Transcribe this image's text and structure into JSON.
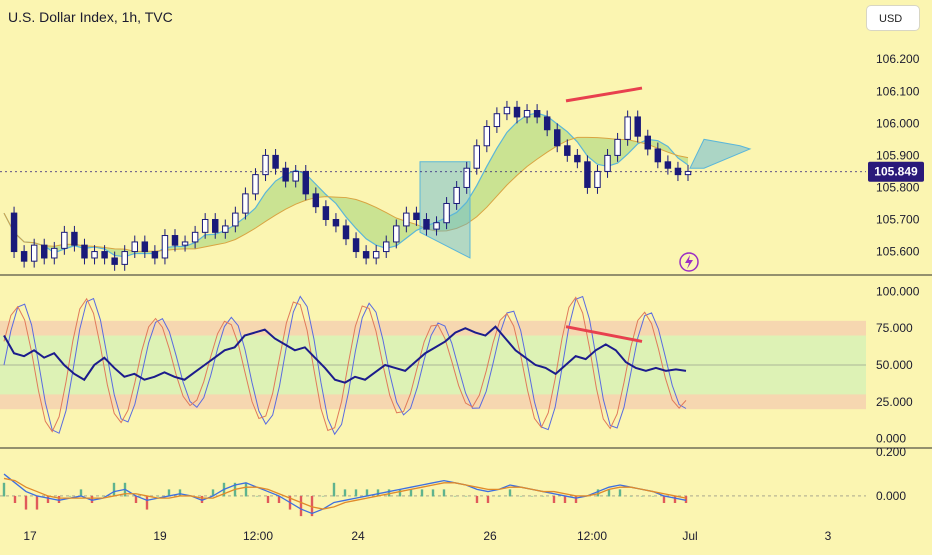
{
  "header": {
    "title": "U.S. Dollar Index, 1h, TVC",
    "currency_label": "USD"
  },
  "colors": {
    "background": "#fbf5b1",
    "candle": "#1a1a7a",
    "cloud_green": "#8fcf6d",
    "cloud_blue": "#5bb6d9",
    "divergence": "#e8404e",
    "rsi_line": "#1c1c8c",
    "stoch_k": "#5a6be0",
    "stoch_d": "#e07a5a",
    "price_badge": "#2a1a7a"
  },
  "time_axis": {
    "labels": [
      "17",
      "19",
      "12:00",
      "24",
      "26",
      "12:00",
      "Jul",
      "3"
    ]
  },
  "chart_data": [
    {
      "type": "candlestick",
      "panel": "price",
      "title": "U.S. Dollar Index, 1h, TVC",
      "ylim": [
        105.53,
        106.26
      ],
      "y_ticks": [
        "106.200",
        "106.100",
        "106.000",
        "105.900",
        "105.800",
        "105.700",
        "105.600"
      ],
      "last_price": "105.849",
      "close_series": [
        105.72,
        105.6,
        105.57,
        105.62,
        105.58,
        105.61,
        105.66,
        105.62,
        105.58,
        105.6,
        105.58,
        105.56,
        105.6,
        105.63,
        105.6,
        105.58,
        105.65,
        105.62,
        105.63,
        105.66,
        105.7,
        105.66,
        105.68,
        105.72,
        105.78,
        105.84,
        105.9,
        105.86,
        105.82,
        105.85,
        105.78,
        105.74,
        105.7,
        105.68,
        105.64,
        105.6,
        105.58,
        105.6,
        105.63,
        105.68,
        105.72,
        105.7,
        105.67,
        105.69,
        105.75,
        105.8,
        105.86,
        105.93,
        105.99,
        106.03,
        106.05,
        106.02,
        106.04,
        106.02,
        105.98,
        105.93,
        105.9,
        105.88,
        105.8,
        105.85,
        105.9,
        105.95,
        106.02,
        105.96,
        105.92,
        105.88,
        105.86,
        105.84,
        105.85
      ]
    },
    {
      "type": "line",
      "panel": "oscillator",
      "y_ticks": [
        "100.000",
        "75.000",
        "50.000",
        "25.000",
        "0.000"
      ],
      "ylim": [
        -5,
        105
      ],
      "series": [
        {
          "values": [
            70,
            58,
            56,
            60,
            55,
            58,
            50,
            44,
            40,
            50,
            55,
            48,
            42,
            44,
            40,
            42,
            45,
            42,
            40,
            45,
            50,
            55,
            60,
            62,
            70,
            72,
            74,
            68,
            64,
            60,
            62,
            55,
            48,
            40,
            38,
            42,
            40,
            45,
            50,
            48,
            46,
            52,
            58,
            62,
            66,
            72,
            75,
            72,
            70,
            76,
            68,
            60,
            55,
            50,
            48,
            44,
            50,
            56,
            54,
            60,
            64,
            60,
            52,
            48,
            46,
            48,
            46,
            47,
            46
          ]
        }
      ]
    },
    {
      "type": "line",
      "panel": "macd",
      "y_ticks": [
        "0.200",
        "0.000"
      ],
      "ylim": [
        -0.11,
        0.21
      ],
      "series": [
        {
          "values": [
            0.1,
            0.06,
            0.02,
            0.0,
            -0.01,
            -0.02,
            -0.01,
            0.0,
            -0.02,
            -0.01,
            0.02,
            0.03,
            0.0,
            -0.02,
            -0.01,
            0.0,
            0.01,
            0.0,
            -0.02,
            0.0,
            0.03,
            0.05,
            0.06,
            0.04,
            0.02,
            0.0,
            -0.03,
            -0.06,
            -0.08,
            -0.06,
            -0.03,
            -0.02,
            -0.01,
            0.0,
            0.01,
            0.02,
            0.03,
            0.04,
            0.05,
            0.06,
            0.07,
            0.06,
            0.05,
            0.03,
            0.02,
            0.03,
            0.05,
            0.04,
            0.03,
            0.02,
            0.01,
            0.0,
            -0.01,
            0.0,
            0.02,
            0.04,
            0.05,
            0.04,
            0.03,
            0.02,
            0.0,
            -0.01,
            -0.02
          ]
        },
        {
          "values": [
            0.08,
            0.07,
            0.04,
            0.02,
            0.0,
            -0.01,
            -0.01,
            -0.01,
            -0.01,
            -0.01,
            0.0,
            0.01,
            0.01,
            0.0,
            -0.01,
            -0.01,
            0.0,
            0.0,
            -0.01,
            -0.01,
            0.01,
            0.03,
            0.04,
            0.04,
            0.03,
            0.01,
            -0.01,
            -0.03,
            -0.05,
            -0.06,
            -0.05,
            -0.03,
            -0.02,
            -0.01,
            0.0,
            0.01,
            0.02,
            0.03,
            0.04,
            0.05,
            0.06,
            0.06,
            0.05,
            0.04,
            0.03,
            0.03,
            0.04,
            0.04,
            0.03,
            0.02,
            0.02,
            0.01,
            0.0,
            0.0,
            0.01,
            0.03,
            0.04,
            0.04,
            0.03,
            0.02,
            0.01,
            0.0,
            -0.01
          ]
        }
      ]
    }
  ]
}
